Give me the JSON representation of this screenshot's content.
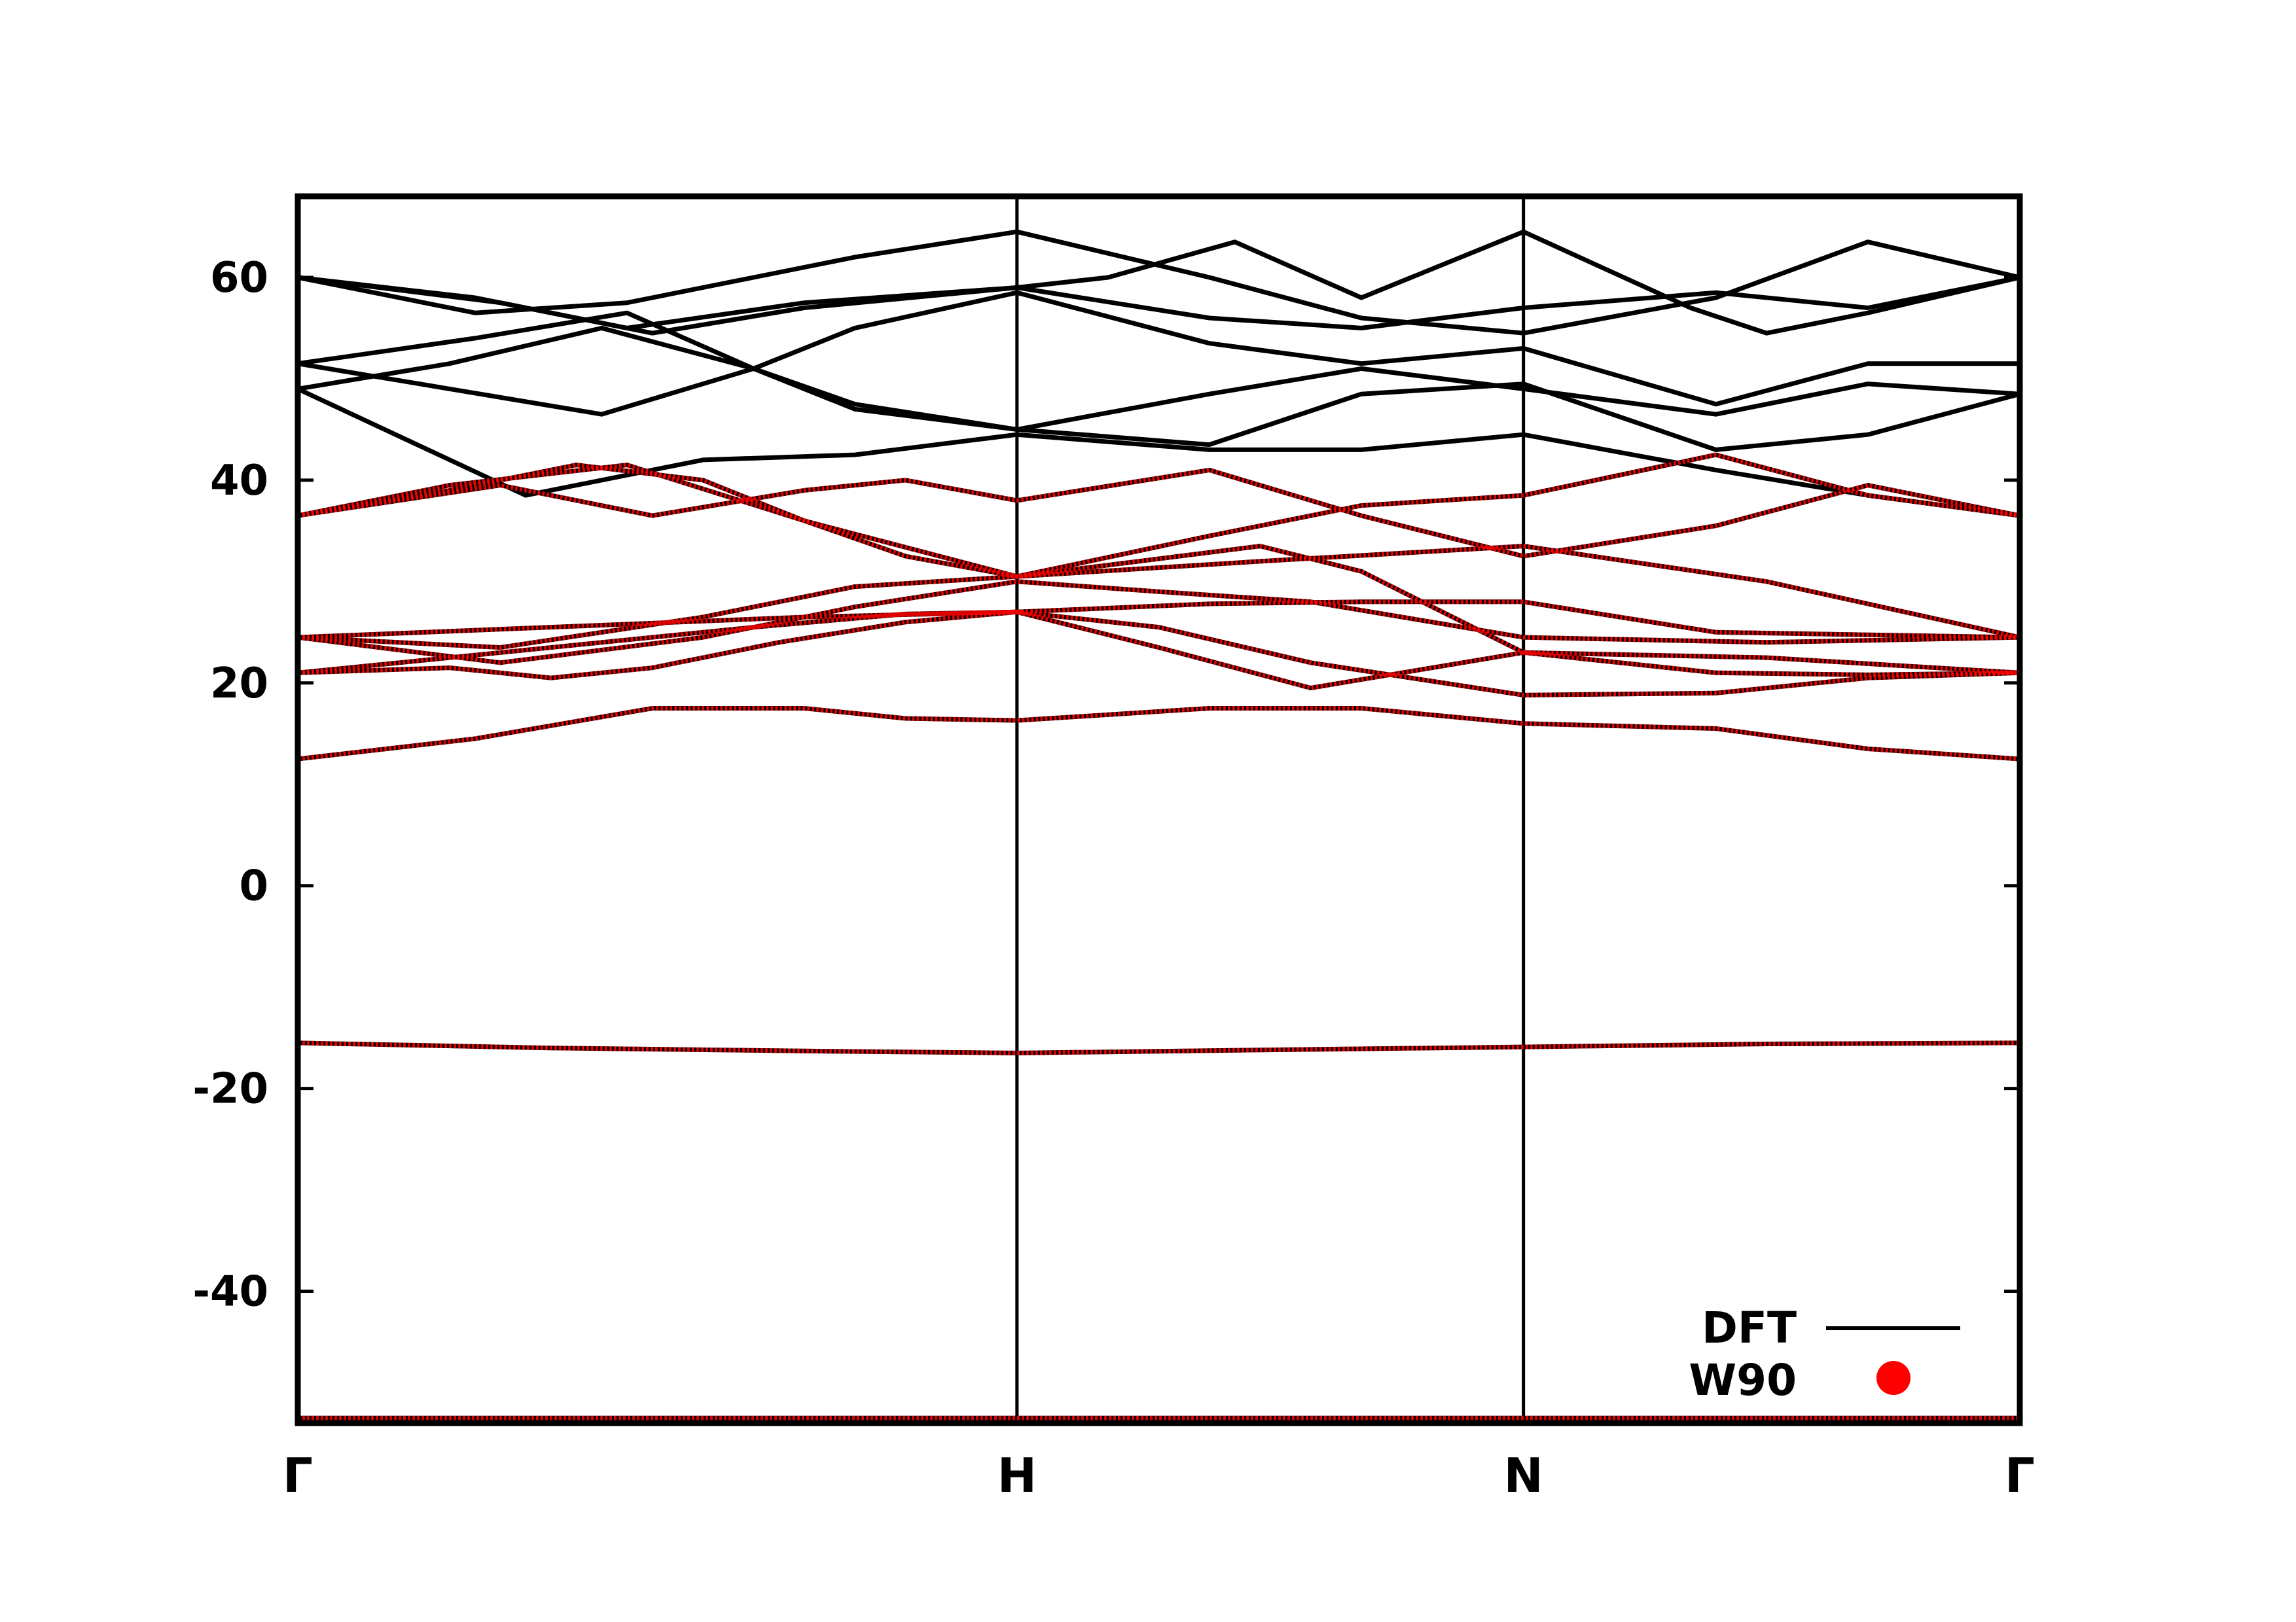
{
  "chart_data": {
    "type": "line",
    "title": "",
    "xlabel": "",
    "ylabel": "",
    "ylim": [
      -53,
      68
    ],
    "yticks": [
      -40,
      -20,
      0,
      20,
      40,
      60
    ],
    "ytick_labels": [
      "-40",
      "-20",
      "0",
      "20",
      "40",
      "60"
    ],
    "xlim": [
      0,
      3.4
    ],
    "kpoints": [
      {
        "label": "Γ",
        "x": 0
      },
      {
        "label": "H",
        "x": 1.42
      },
      {
        "label": "N",
        "x": 2.42
      },
      {
        "label": "Γ",
        "x": 3.4
      }
    ],
    "grid": false,
    "legend": {
      "position": "bottom-right",
      "entries": [
        {
          "label": "DFT",
          "style": "line",
          "color": "#000000"
        },
        {
          "label": "W90",
          "style": "marker",
          "color": "#ff0000"
        }
      ]
    },
    "series": [
      {
        "name": "DFT",
        "color": "#000000",
        "bands": [
          {
            "x": [
              0,
              0.55,
              1.42,
              2.42,
              3.4
            ],
            "y": [
              -52.5,
              -52.5,
              -52.5,
              -52.5,
              -52.5
            ]
          },
          {
            "x": [
              0,
              0.5,
              1.0,
              1.42,
              1.9,
              2.42,
              2.9,
              3.4
            ],
            "y": [
              -15.5,
              -16.0,
              -16.3,
              -16.5,
              -16.2,
              -15.9,
              -15.6,
              -15.5
            ]
          },
          {
            "x": [
              0,
              0.35,
              0.7,
              1.0,
              1.2,
              1.42,
              1.8,
              2.1,
              2.42,
              2.8,
              3.1,
              3.4
            ],
            "y": [
              12.5,
              14.5,
              17.5,
              17.5,
              16.5,
              16.3,
              17.5,
              17.5,
              16.0,
              15.5,
              13.5,
              12.5
            ]
          },
          {
            "x": [
              0,
              0.3,
              0.5,
              0.7,
              0.95,
              1.2,
              1.42,
              1.7,
              2.0,
              2.42,
              2.8,
              3.1,
              3.4
            ],
            "y": [
              21.0,
              21.5,
              20.5,
              21.5,
              24.0,
              26.0,
              27.0,
              25.5,
              22.0,
              18.8,
              19.0,
              20.5,
              21.0
            ]
          },
          {
            "x": [
              0,
              0.3,
              0.6,
              0.9,
              1.2,
              1.42,
              1.7,
              2.0,
              2.42,
              2.9,
              3.4
            ],
            "y": [
              21.0,
              22.5,
              24.0,
              25.5,
              26.8,
              27.0,
              23.5,
              19.5,
              23.0,
              22.5,
              21.0
            ]
          },
          {
            "x": [
              0,
              0.5,
              1.0,
              1.42,
              1.8,
              2.1,
              2.42,
              2.8,
              3.4
            ],
            "y": [
              24.5,
              25.5,
              26.5,
              27.0,
              27.8,
              28.0,
              28.0,
              25.0,
              24.5
            ]
          },
          {
            "x": [
              0,
              0.4,
              0.8,
              1.1,
              1.42,
              1.7,
              2.0,
              2.42,
              2.9,
              3.4
            ],
            "y": [
              24.5,
              22.0,
              24.5,
              27.5,
              30.0,
              29.0,
              28.0,
              24.5,
              24.0,
              24.5
            ]
          },
          {
            "x": [
              0,
              0.4,
              0.8,
              1.1,
              1.42,
              1.9,
              2.42,
              2.9,
              3.4
            ],
            "y": [
              24.5,
              23.5,
              26.5,
              29.5,
              30.5,
              32.0,
              33.5,
              30.0,
              24.5
            ]
          },
          {
            "x": [
              0,
              0.3,
              0.55,
              0.8,
              1.0,
              1.2,
              1.42,
              1.9,
              2.1,
              2.42,
              2.8,
              3.1,
              3.4
            ],
            "y": [
              36.5,
              39.0,
              41.5,
              40.0,
              36.0,
              32.5,
              30.5,
              33.5,
              31.0,
              23.0,
              21.0,
              20.8,
              21.0
            ]
          },
          {
            "x": [
              0,
              0.4,
              0.7,
              1.0,
              1.2,
              1.42,
              1.8,
              2.1,
              2.42,
              2.8,
              3.1,
              3.4
            ],
            "y": [
              36.5,
              39.5,
              36.5,
              39.0,
              40.0,
              38.0,
              41.0,
              36.5,
              32.5,
              35.5,
              39.5,
              36.5
            ]
          },
          {
            "x": [
              0,
              0.3,
              0.65,
              1.0,
              1.42,
              1.8,
              2.1,
              2.42,
              2.8,
              3.1,
              3.4
            ],
            "y": [
              36.5,
              39.5,
              41.5,
              36.0,
              30.5,
              34.5,
              37.5,
              38.5,
              42.5,
              38.5,
              36.5
            ]
          },
          {
            "x": [
              0,
              0.45,
              0.8,
              1.1,
              1.42,
              1.8,
              2.1,
              2.42,
              2.8,
              3.1,
              3.4
            ],
            "y": [
              49.0,
              38.5,
              42.0,
              42.5,
              44.5,
              43.0,
              43.0,
              44.5,
              41.0,
              38.5,
              36.5
            ]
          },
          {
            "x": [
              0,
              0.3,
              0.6,
              0.9,
              1.1,
              1.42,
              1.8,
              2.1,
              2.42,
              2.8,
              3.1,
              3.4
            ],
            "y": [
              51.5,
              49.0,
              46.5,
              51.0,
              47.5,
              45.0,
              43.5,
              48.5,
              49.5,
              43.0,
              44.5,
              48.5
            ]
          },
          {
            "x": [
              0,
              0.3,
              0.6,
              0.9,
              1.1,
              1.42,
              1.8,
              2.1,
              2.42,
              2.8,
              3.1,
              3.4
            ],
            "y": [
              49.0,
              51.5,
              55.0,
              51.0,
              47.0,
              45.0,
              48.5,
              51.0,
              49.0,
              46.5,
              49.5,
              48.5
            ]
          },
          {
            "x": [
              0,
              0.35,
              0.65,
              0.9,
              1.1,
              1.42,
              1.8,
              2.1,
              2.42,
              2.8,
              3.1,
              3.4
            ],
            "y": [
              51.5,
              54.0,
              56.5,
              51.0,
              55.0,
              58.5,
              53.5,
              51.5,
              53.0,
              47.5,
              51.5,
              51.5
            ]
          },
          {
            "x": [
              0,
              0.4,
              0.7,
              1.0,
              1.42,
              1.8,
              2.1,
              2.42,
              2.8,
              3.1,
              3.4
            ],
            "y": [
              60.0,
              57.5,
              54.5,
              57.0,
              59.0,
              56.0,
              55.0,
              57.0,
              58.5,
              57.0,
              60.0
            ]
          },
          {
            "x": [
              0,
              0.35,
              0.65,
              0.9,
              1.1,
              1.42,
              1.8,
              2.1,
              2.42,
              2.8,
              3.1,
              3.4
            ],
            "y": [
              60.0,
              56.5,
              57.5,
              60.0,
              62.0,
              64.5,
              60.0,
              56.0,
              54.5,
              58.0,
              63.5,
              60.0
            ]
          },
          {
            "x": [
              0,
              0.35,
              0.65,
              1.0,
              1.42,
              1.6,
              1.85,
              2.1,
              2.42,
              2.75,
              2.9,
              3.1,
              3.4
            ],
            "y": [
              60.0,
              58.0,
              55.0,
              57.5,
              59.0,
              60.0,
              63.5,
              58.0,
              64.5,
              57.0,
              54.5,
              56.5,
              60.0
            ]
          }
        ]
      },
      {
        "name": "W90",
        "color": "#ff0000",
        "bands": [
          {
            "x": [
              0,
              0.55,
              1.42,
              2.42,
              3.4
            ],
            "y": [
              -52.5,
              -52.5,
              -52.5,
              -52.5,
              -52.5
            ]
          },
          {
            "x": [
              0,
              0.5,
              1.0,
              1.42,
              1.9,
              2.42,
              2.9,
              3.4
            ],
            "y": [
              -15.5,
              -16.0,
              -16.3,
              -16.5,
              -16.2,
              -15.9,
              -15.6,
              -15.5
            ]
          },
          {
            "x": [
              0,
              0.35,
              0.7,
              1.0,
              1.2,
              1.42,
              1.8,
              2.1,
              2.42,
              2.8,
              3.1,
              3.4
            ],
            "y": [
              12.5,
              14.5,
              17.5,
              17.5,
              16.5,
              16.3,
              17.5,
              17.5,
              16.0,
              15.5,
              13.5,
              12.5
            ]
          },
          {
            "x": [
              0,
              0.3,
              0.5,
              0.7,
              0.95,
              1.2,
              1.42,
              1.7,
              2.0,
              2.42,
              2.8,
              3.1,
              3.4
            ],
            "y": [
              21.0,
              21.5,
              20.5,
              21.5,
              24.0,
              26.0,
              27.0,
              25.5,
              22.0,
              18.8,
              19.0,
              20.5,
              21.0
            ]
          },
          {
            "x": [
              0,
              0.3,
              0.6,
              0.9,
              1.2,
              1.42,
              1.7,
              2.0,
              2.42,
              2.9,
              3.4
            ],
            "y": [
              21.0,
              22.5,
              24.0,
              25.5,
              26.8,
              27.0,
              23.5,
              19.5,
              23.0,
              22.5,
              21.0
            ]
          },
          {
            "x": [
              0,
              0.5,
              1.0,
              1.42,
              1.8,
              2.1,
              2.42,
              2.8,
              3.4
            ],
            "y": [
              24.5,
              25.5,
              26.5,
              27.0,
              27.8,
              28.0,
              28.0,
              25.0,
              24.5
            ]
          },
          {
            "x": [
              0,
              0.4,
              0.8,
              1.1,
              1.42,
              1.7,
              2.0,
              2.42,
              2.9,
              3.4
            ],
            "y": [
              24.5,
              22.0,
              24.5,
              27.5,
              30.0,
              29.0,
              28.0,
              24.5,
              24.0,
              24.5
            ]
          },
          {
            "x": [
              0,
              0.4,
              0.8,
              1.1,
              1.42,
              1.9,
              2.42,
              2.9,
              3.4
            ],
            "y": [
              24.5,
              23.5,
              26.5,
              29.5,
              30.5,
              32.0,
              33.5,
              30.0,
              24.5
            ]
          },
          {
            "x": [
              0,
              0.3,
              0.55,
              0.8,
              1.0,
              1.2,
              1.42,
              1.9,
              2.1,
              2.42,
              2.8,
              3.1,
              3.4
            ],
            "y": [
              36.5,
              39.0,
              41.5,
              40.0,
              36.0,
              32.5,
              30.5,
              33.5,
              31.0,
              23.0,
              21.0,
              20.8,
              21.0
            ]
          },
          {
            "x": [
              0,
              0.4,
              0.7,
              1.0,
              1.2,
              1.42,
              1.8,
              2.1,
              2.42,
              2.8,
              3.1,
              3.4
            ],
            "y": [
              36.5,
              39.5,
              36.5,
              39.0,
              40.0,
              38.0,
              41.0,
              36.5,
              32.5,
              35.5,
              39.5,
              36.5
            ]
          },
          {
            "x": [
              0,
              0.3,
              0.65,
              1.0,
              1.42,
              1.8,
              2.1,
              2.42,
              2.8,
              3.1,
              3.4
            ],
            "y": [
              36.5,
              39.5,
              41.5,
              36.0,
              30.5,
              34.5,
              37.5,
              38.5,
              42.5,
              38.5,
              36.5
            ]
          }
        ]
      }
    ]
  }
}
